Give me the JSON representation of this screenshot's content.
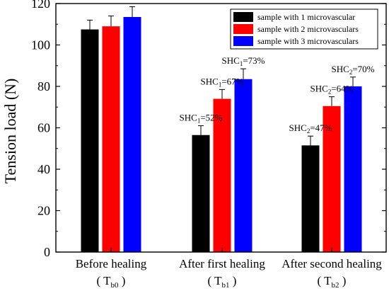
{
  "chart_data": {
    "type": "bar",
    "ylabel": "Tension load (N)",
    "ylim": [
      0,
      120
    ],
    "yticks": [
      0,
      20,
      40,
      60,
      80,
      100,
      120
    ],
    "groups": [
      {
        "label": "Before healing",
        "sub": {
          "main": "( T",
          "sub": "b0",
          "end": ")"
        }
      },
      {
        "label": "After first healing",
        "sub": {
          "main": "( T",
          "sub": "b1",
          "end": ")"
        }
      },
      {
        "label": "After second healing",
        "sub": {
          "main": "( T",
          "sub": "b2",
          "end": ")"
        }
      }
    ],
    "series": [
      {
        "name": "sample with 1 microvascular",
        "color": "#000000",
        "values": [
          107.5,
          56.5,
          51.5
        ],
        "errors": [
          4.5,
          4.5,
          4.5
        ]
      },
      {
        "name": "sample with 2 microvasculars",
        "color": "#ff0000",
        "values": [
          109,
          74,
          70.5
        ],
        "errors": [
          5,
          4.5,
          4.5
        ]
      },
      {
        "name": "sample with 3 microvasculars",
        "color": "#0000ff",
        "values": [
          113.5,
          83.5,
          80
        ],
        "errors": [
          5,
          5,
          4.5
        ]
      }
    ],
    "annotations": [
      {
        "group": 1,
        "series": 0,
        "main": "SHC",
        "sub": "1",
        "rest": "=52%"
      },
      {
        "group": 1,
        "series": 1,
        "main": "SHC",
        "sub": "1",
        "rest": "=67%"
      },
      {
        "group": 1,
        "series": 2,
        "main": "SHC",
        "sub": "1",
        "rest": "=73%"
      },
      {
        "group": 2,
        "series": 0,
        "main": "SHC",
        "sub": "2",
        "rest": "=47%"
      },
      {
        "group": 2,
        "series": 1,
        "main": "SHC",
        "sub": "2",
        "rest": "=64%"
      },
      {
        "group": 2,
        "series": 2,
        "main": "SHC",
        "sub": "2",
        "rest": "=70%"
      }
    ],
    "legend_position": "top-right"
  }
}
